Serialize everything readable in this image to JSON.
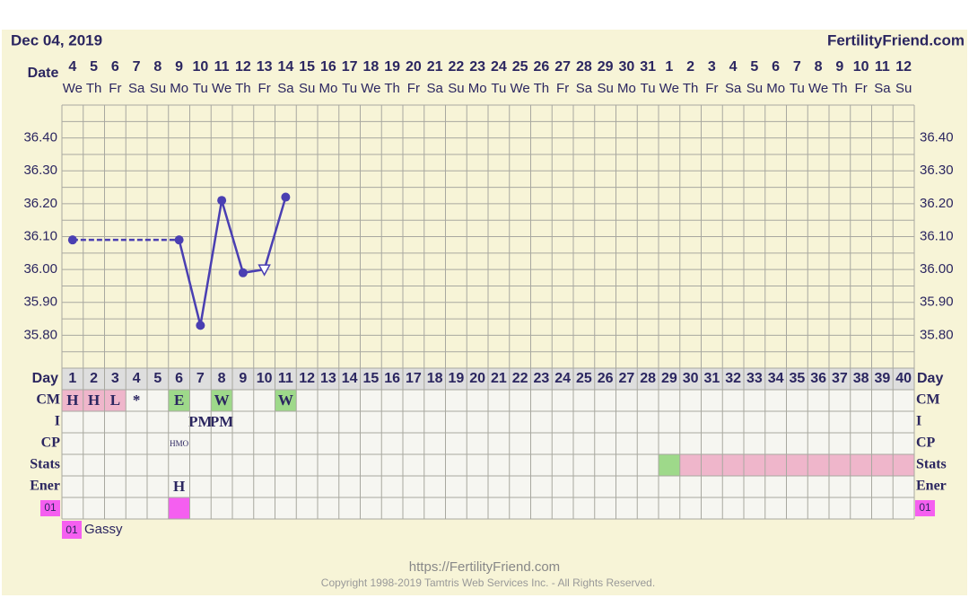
{
  "header": {
    "date": "Dec 04, 2019",
    "site": "FertilityFriend.com"
  },
  "chart_data": {
    "type": "line",
    "x_label": "Date",
    "dates": [
      "4",
      "5",
      "6",
      "7",
      "8",
      "9",
      "10",
      "11",
      "12",
      "13",
      "14",
      "15",
      "16",
      "17",
      "18",
      "19",
      "20",
      "21",
      "22",
      "23",
      "24",
      "25",
      "26",
      "27",
      "28",
      "29",
      "30",
      "31",
      "1",
      "2",
      "3",
      "4",
      "5",
      "6",
      "7",
      "8",
      "9",
      "10",
      "11",
      "12"
    ],
    "weekdays": [
      "We",
      "Th",
      "Fr",
      "Sa",
      "Su",
      "Mo",
      "Tu",
      "We",
      "Th",
      "Fr",
      "Sa",
      "Su",
      "Mo",
      "Tu",
      "We",
      "Th",
      "Fr",
      "Sa",
      "Su",
      "Mo",
      "Tu",
      "We",
      "Th",
      "Fr",
      "Sa",
      "Su",
      "Mo",
      "Tu",
      "We",
      "Th",
      "Fr",
      "Sa",
      "Su",
      "Mo",
      "Tu",
      "We",
      "Th",
      "Fr",
      "Sa",
      "Su"
    ],
    "day_label": "Day",
    "days": [
      "1",
      "2",
      "3",
      "4",
      "5",
      "6",
      "7",
      "8",
      "9",
      "10",
      "11",
      "12",
      "13",
      "14",
      "15",
      "16",
      "17",
      "18",
      "19",
      "20",
      "21",
      "22",
      "23",
      "24",
      "25",
      "26",
      "27",
      "28",
      "29",
      "30",
      "31",
      "32",
      "33",
      "34",
      "35",
      "36",
      "37",
      "38",
      "39",
      "40"
    ],
    "ylim": [
      35.7,
      36.5
    ],
    "yticks": [
      {
        "value": 35.8,
        "label": "35.80"
      },
      {
        "value": 35.9,
        "label": "35.90"
      },
      {
        "value": 36.0,
        "label": "36.00"
      },
      {
        "value": 36.1,
        "label": "36.10"
      },
      {
        "value": 36.2,
        "label": "36.20"
      },
      {
        "value": 36.3,
        "label": "36.30"
      },
      {
        "value": 36.4,
        "label": "36.40"
      }
    ],
    "grid": true,
    "series": [
      {
        "color": "#4a3fb2",
        "values": [
          36.09,
          null,
          null,
          null,
          null,
          36.09,
          35.83,
          36.21,
          35.99,
          36.0,
          36.22,
          null,
          null,
          null,
          null,
          null,
          null,
          null,
          null,
          null,
          null,
          null,
          null,
          null,
          null,
          null,
          null,
          null,
          null,
          null,
          null,
          null,
          null,
          null,
          null,
          null,
          null,
          null,
          null,
          null
        ],
        "markers": [
          "circle",
          null,
          null,
          null,
          null,
          "circle",
          "circle",
          "circle",
          "circle",
          "triangle",
          "circle",
          null,
          null,
          null,
          null,
          null,
          null,
          null,
          null,
          null,
          null,
          null,
          null,
          null,
          null,
          null,
          null,
          null,
          null,
          null,
          null,
          null,
          null,
          null,
          null,
          null,
          null,
          null,
          null,
          null
        ]
      }
    ]
  },
  "rows": [
    {
      "label": "CM",
      "cells": [
        {
          "text": "H",
          "fill": "#efb6cb"
        },
        {
          "text": "H",
          "fill": "#efb6cb"
        },
        {
          "text": "L",
          "fill": "#efb6cb"
        },
        {
          "text": "*"
        },
        null,
        {
          "text": "E",
          "fill": "#9ed98a"
        },
        null,
        {
          "text": "W",
          "fill": "#9ed98a"
        },
        null,
        null,
        {
          "text": "W",
          "fill": "#9ed98a"
        },
        null,
        null,
        null,
        null,
        null,
        null,
        null,
        null,
        null,
        null,
        null,
        null,
        null,
        null,
        null,
        null,
        null,
        null,
        null,
        null,
        null,
        null,
        null,
        null,
        null,
        null,
        null,
        null,
        null
      ]
    },
    {
      "label": "I",
      "cells": [
        null,
        null,
        null,
        null,
        null,
        null,
        {
          "text": "PM"
        },
        {
          "text": "PM"
        },
        null,
        null,
        null,
        null,
        null,
        null,
        null,
        null,
        null,
        null,
        null,
        null,
        null,
        null,
        null,
        null,
        null,
        null,
        null,
        null,
        null,
        null,
        null,
        null,
        null,
        null,
        null,
        null,
        null,
        null,
        null,
        null
      ]
    },
    {
      "label": "CP",
      "cells": [
        null,
        null,
        null,
        null,
        null,
        {
          "text": "HMO",
          "small": true
        },
        null,
        null,
        null,
        null,
        null,
        null,
        null,
        null,
        null,
        null,
        null,
        null,
        null,
        null,
        null,
        null,
        null,
        null,
        null,
        null,
        null,
        null,
        null,
        null,
        null,
        null,
        null,
        null,
        null,
        null,
        null,
        null,
        null,
        null
      ]
    },
    {
      "label": "Stats",
      "cells": [
        null,
        null,
        null,
        null,
        null,
        null,
        null,
        null,
        null,
        null,
        null,
        null,
        null,
        null,
        null,
        null,
        null,
        null,
        null,
        null,
        null,
        null,
        null,
        null,
        null,
        null,
        null,
        null,
        {
          "fill": "#9ed98a"
        },
        {
          "fill": "#efb6cb"
        },
        {
          "fill": "#efb6cb"
        },
        {
          "fill": "#efb6cb"
        },
        {
          "fill": "#efb6cb"
        },
        {
          "fill": "#efb6cb"
        },
        {
          "fill": "#efb6cb"
        },
        {
          "fill": "#efb6cb"
        },
        {
          "fill": "#efb6cb"
        },
        {
          "fill": "#efb6cb"
        },
        {
          "fill": "#efb6cb"
        },
        {
          "fill": "#efb6cb"
        }
      ]
    },
    {
      "label": "Ener",
      "cells": [
        null,
        null,
        null,
        null,
        null,
        {
          "text": "H"
        },
        null,
        null,
        null,
        null,
        null,
        null,
        null,
        null,
        null,
        null,
        null,
        null,
        null,
        null,
        null,
        null,
        null,
        null,
        null,
        null,
        null,
        null,
        null,
        null,
        null,
        null,
        null,
        null,
        null,
        null,
        null,
        null,
        null,
        null
      ]
    },
    {
      "label": "01",
      "label_fill": "#f55ff0",
      "cells": [
        null,
        null,
        null,
        null,
        null,
        {
          "fill": "#f55ff0"
        },
        null,
        null,
        null,
        null,
        null,
        null,
        null,
        null,
        null,
        null,
        null,
        null,
        null,
        null,
        null,
        null,
        null,
        null,
        null,
        null,
        null,
        null,
        null,
        null,
        null,
        null,
        null,
        null,
        null,
        null,
        null,
        null,
        null,
        null
      ]
    }
  ],
  "legend": [
    {
      "code": "01",
      "text": "Gassy",
      "color": "#f55ff0"
    }
  ],
  "footer": {
    "url": "https://FertilityFriend.com",
    "copyright": "Copyright 1998-2019 Tamtris Web Services Inc. - All Rights Reserved."
  }
}
